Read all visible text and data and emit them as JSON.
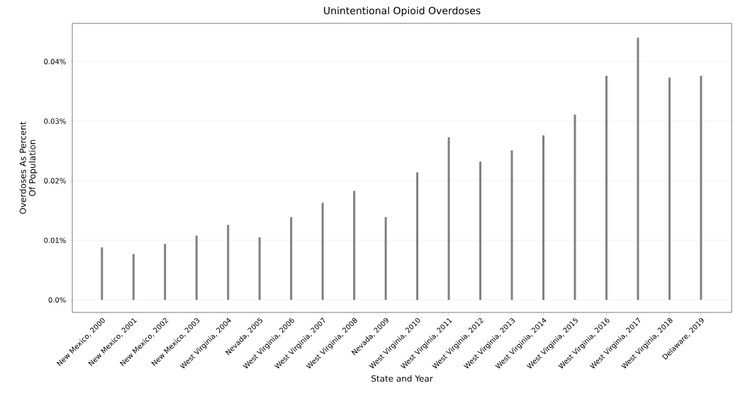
{
  "chart_data": {
    "type": "bar",
    "title": "Unintentional Opioid Overdoses",
    "xlabel": "State and Year",
    "ylabel": "Overdoses As Percent\nOf Population",
    "categories": [
      "New Mexico, 2000",
      "New Mexico, 2001",
      "New Mexico, 2002",
      "New Mexico, 2003",
      "West Virginia, 2004",
      "Nevada, 2005",
      "West Virginia, 2006",
      "West Virginia, 2007",
      "West Virginia, 2008",
      "Nevada, 2009",
      "West Virginia, 2010",
      "West Virginia, 2011",
      "West Virginia, 2012",
      "West Virginia, 2013",
      "West Virginia, 2014",
      "West Virginia, 2015",
      "West Virginia, 2016",
      "West Virginia, 2017",
      "West Virginia, 2018",
      "Delaware, 2019"
    ],
    "values": [
      0.0088,
      0.0077,
      0.0094,
      0.0108,
      0.0126,
      0.0105,
      0.0139,
      0.0163,
      0.0183,
      0.0139,
      0.0214,
      0.0273,
      0.0232,
      0.0251,
      0.0276,
      0.0311,
      0.0376,
      0.044,
      0.0373,
      0.0376
    ],
    "color": "#808080",
    "ylim": [
      -0.0021,
      0.0464
    ],
    "yticks": [
      {
        "value": 0,
        "label": "0.0%"
      },
      {
        "value": 0.01,
        "label": "0.01%"
      },
      {
        "value": 0.02,
        "label": "0.02%"
      },
      {
        "value": 0.03,
        "label": "0.03%"
      },
      {
        "value": 0.04,
        "label": "0.04%"
      }
    ],
    "grid": "y"
  }
}
